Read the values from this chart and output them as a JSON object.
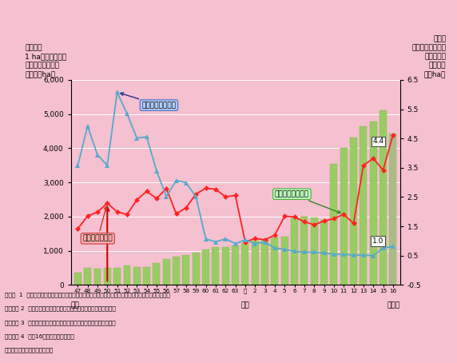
{
  "bg_color": "#f5c0d0",
  "ylabel_left_lines": [
    "水害密度",
    "1 ha当たり被害額",
    "（平成７年価格）",
    "（万円／ha）"
  ],
  "ylabel_right_lines": [
    "被害額",
    "（平成７年価格）",
    "（千億円）",
    "浸水面積",
    "（万ha）"
  ],
  "ylim_left": [
    0,
    6000
  ],
  "ylim_right": [
    -0.5,
    6.5
  ],
  "yticks_left": [
    0,
    1000,
    2000,
    3000,
    4000,
    5000,
    6000
  ],
  "ytick_labels_left": [
    "0",
    "1,000",
    "2,000",
    "3,000",
    "4,000",
    "5,000",
    "6,000"
  ],
  "yticks_right": [
    -0.5,
    0.5,
    1.5,
    2.5,
    3.5,
    4.5,
    5.5,
    6.5
  ],
  "ytick_labels_right": [
    "-0.5",
    "0.5",
    "1.5",
    "2.5",
    "3.5",
    "4.5",
    "5.5",
    "6.5"
  ],
  "bar_heights": [
    370,
    510,
    480,
    490,
    500,
    560,
    530,
    520,
    630,
    750,
    830,
    880,
    950,
    1050,
    1100,
    1120,
    1150,
    1220,
    1300,
    1340,
    1380,
    1420,
    1950,
    2000,
    1970,
    1900,
    3540,
    4010,
    4320,
    4650,
    4780,
    5100,
    4430
  ],
  "bar_color": "#99cc66",
  "bar_last_color": "#aabb88",
  "red_line": [
    1640,
    2020,
    2130,
    2390,
    2140,
    2060,
    2490,
    2740,
    2530,
    2820,
    2080,
    2260,
    2660,
    2830,
    2800,
    2580,
    2620,
    1260,
    1360,
    1320,
    1460,
    2010,
    1990,
    1850,
    1760,
    1870,
    1940,
    2070,
    1800,
    3500,
    3700,
    3360,
    4390
  ],
  "blue_line": [
    3490,
    4650,
    3810,
    3500,
    5640,
    5010,
    4300,
    4330,
    3340,
    2590,
    3060,
    2990,
    2580,
    1350,
    1260,
    1350,
    1210,
    1320,
    1210,
    1250,
    1080,
    1040,
    980,
    960,
    960,
    940,
    900,
    890,
    880,
    870,
    860,
    1080,
    1130
  ],
  "red_color": "#ff2222",
  "blue_color": "#55aacc",
  "x_labels": [
    "47",
    "48",
    "49",
    "50",
    "51",
    "52",
    "53",
    "54",
    "55",
    "56",
    "57",
    "58",
    "59",
    "60",
    "61",
    "62",
    "63",
    "元",
    "2",
    "3",
    "4",
    "5",
    "6",
    "7",
    "8",
    "9",
    "10",
    "11",
    "12",
    "13",
    "14",
    "15",
    "16"
  ],
  "showa_idx": 0,
  "heisei_idx": 17,
  "label_showa": "昭和",
  "label_heisei": "平成",
  "label_nen": "（年）",
  "annot_blue": "宅地等の浸水面積",
  "annot_red": "一般資産被害額",
  "annot_density": "一般資産水害密度",
  "val_44": "4.4",
  "val_10": "1.0",
  "note1": "（注）  1  一般資産被害額及び水害密度には営業停止損失を含む。また、価格は平成７年価格である。",
  "note2": "　　　　 2  各年の計数は当該年を含む過去５箇年の平均値である。",
  "note3": "　　　　 3  一般資産水害密度＝一般資産被害額／宅地等の浸水面積",
  "note4": "　　　　 4  平成16年は速報値である。",
  "source": "資料）国土交通省「水害統計」"
}
